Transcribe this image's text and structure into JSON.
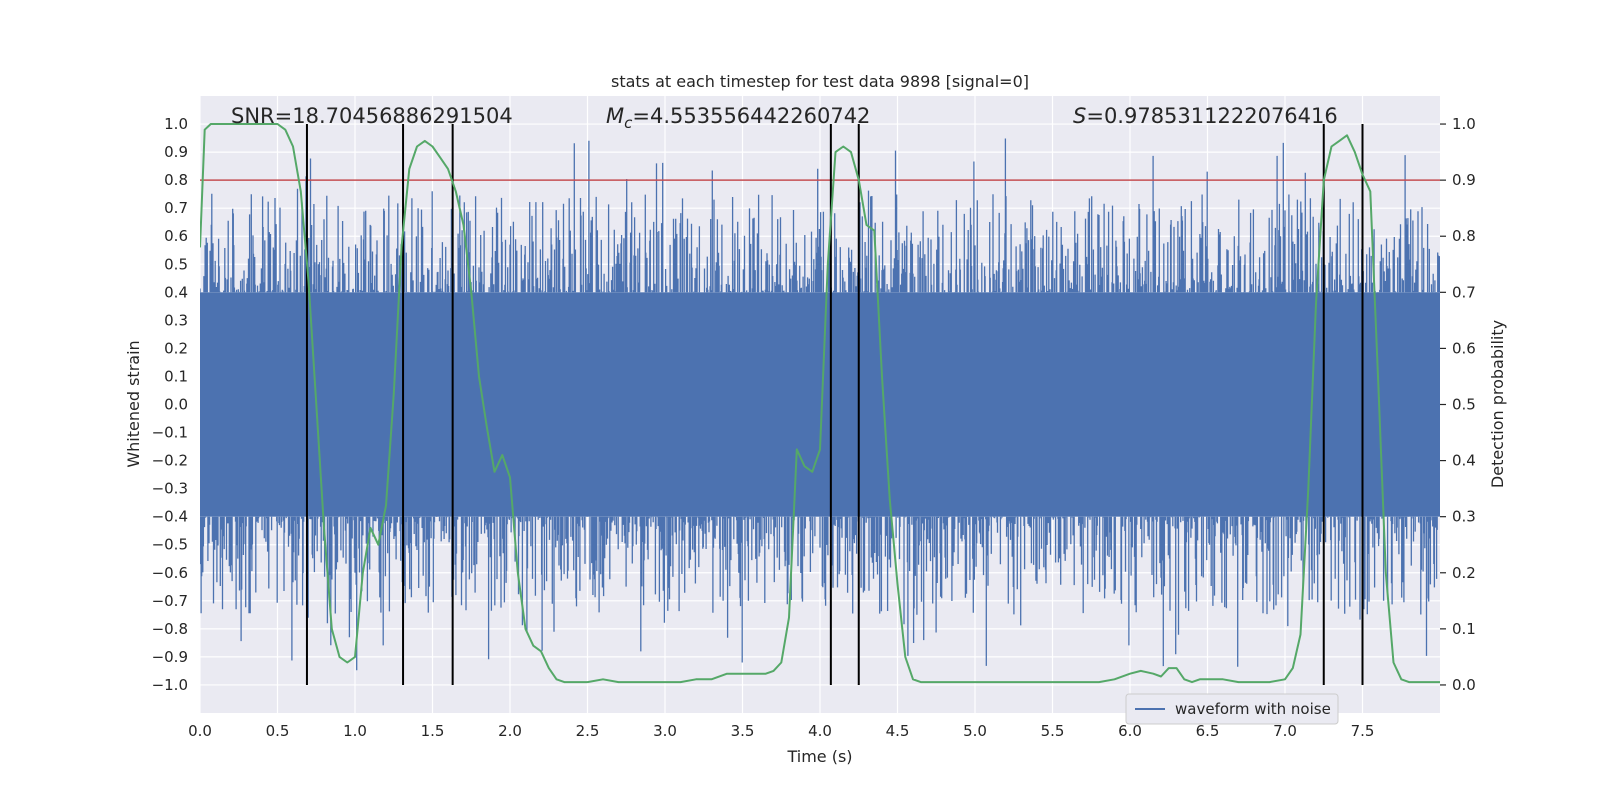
{
  "chart_data": {
    "type": "line",
    "title": "stats at each timestep for test data 9898 [signal=0]",
    "xlabel": "Time (s)",
    "ylabel_left": "Whitened strain",
    "ylabel_right": "Detection probability",
    "xlim": [
      0,
      8
    ],
    "ylim_left": [
      -1.1,
      1.1
    ],
    "ylim_right": [
      -0.05,
      1.05
    ],
    "xticks": [
      "0.0",
      "0.5",
      "1.0",
      "1.5",
      "2.0",
      "2.5",
      "3.0",
      "3.5",
      "4.0",
      "4.5",
      "5.0",
      "5.5",
      "6.0",
      "6.5",
      "7.0",
      "7.5"
    ],
    "xtick_values": [
      0,
      0.5,
      1,
      1.5,
      2,
      2.5,
      3,
      3.5,
      4,
      4.5,
      5,
      5.5,
      6,
      6.5,
      7,
      7.5
    ],
    "yticks_left": [
      "1.0",
      "0.9",
      "0.8",
      "0.7",
      "0.6",
      "0.5",
      "0.4",
      "0.3",
      "0.2",
      "0.1",
      "0.0",
      "−0.1",
      "−0.2",
      "−0.3",
      "−0.4",
      "−0.5",
      "−0.6",
      "−0.7",
      "−0.8",
      "−0.9",
      "−1.0"
    ],
    "ytick_values_left": [
      1.0,
      0.9,
      0.8,
      0.7,
      0.6,
      0.5,
      0.4,
      0.3,
      0.2,
      0.1,
      0.0,
      -0.1,
      -0.2,
      -0.3,
      -0.4,
      -0.5,
      -0.6,
      -0.7,
      -0.8,
      -0.9,
      -1.0
    ],
    "yticks_right": [
      "1.0",
      "0.9",
      "0.8",
      "0.7",
      "0.6",
      "0.5",
      "0.4",
      "0.3",
      "0.2",
      "0.1",
      "0.0"
    ],
    "ytick_values_right": [
      1.0,
      0.9,
      0.8,
      0.7,
      0.6,
      0.5,
      0.4,
      0.3,
      0.2,
      0.1,
      0.0
    ],
    "annotations": {
      "snr": "SNR=18.70456886291504",
      "mc_symbol": "M",
      "mc_sub": "c",
      "mc_value": "=4.553556442260742",
      "s_symbol": "S",
      "s_value": "=0.9785311222076416"
    },
    "legend": [
      "waveform with noise"
    ],
    "threshold": 0.9,
    "vlines": [
      0.69,
      1.31,
      1.63,
      4.07,
      4.25,
      7.25,
      7.5
    ],
    "noise_band": {
      "core_abs": 0.4,
      "duration_s": 8
    },
    "detection_probability": {
      "name": "Detection probability",
      "t": [
        0.0,
        0.03,
        0.07,
        0.12,
        0.2,
        0.3,
        0.4,
        0.5,
        0.55,
        0.6,
        0.65,
        0.7,
        0.75,
        0.8,
        0.85,
        0.9,
        0.95,
        1.0,
        1.05,
        1.1,
        1.15,
        1.2,
        1.25,
        1.3,
        1.35,
        1.4,
        1.45,
        1.5,
        1.55,
        1.6,
        1.65,
        1.7,
        1.75,
        1.8,
        1.85,
        1.9,
        1.95,
        2.0,
        2.05,
        2.1,
        2.15,
        2.2,
        2.25,
        2.3,
        2.35,
        2.4,
        2.5,
        2.6,
        2.7,
        2.8,
        2.9,
        3.0,
        3.1,
        3.2,
        3.3,
        3.4,
        3.45,
        3.5,
        3.55,
        3.6,
        3.65,
        3.7,
        3.75,
        3.8,
        3.85,
        3.9,
        3.95,
        4.0,
        4.05,
        4.1,
        4.15,
        4.2,
        4.25,
        4.3,
        4.35,
        4.4,
        4.45,
        4.5,
        4.55,
        4.6,
        4.65,
        4.7,
        4.75,
        4.8,
        5.0,
        5.2,
        5.4,
        5.6,
        5.8,
        5.9,
        6.0,
        6.07,
        6.15,
        6.2,
        6.25,
        6.3,
        6.35,
        6.4,
        6.45,
        6.5,
        6.6,
        6.7,
        6.8,
        6.9,
        7.0,
        7.05,
        7.1,
        7.15,
        7.2,
        7.25,
        7.3,
        7.35,
        7.4,
        7.45,
        7.5,
        7.55,
        7.6,
        7.65,
        7.7,
        7.75,
        7.8,
        7.9,
        8.0
      ],
      "p": [
        0.78,
        0.99,
        1.0,
        1.0,
        1.0,
        1.0,
        1.0,
        1.0,
        0.99,
        0.96,
        0.88,
        0.72,
        0.5,
        0.28,
        0.1,
        0.05,
        0.04,
        0.05,
        0.2,
        0.28,
        0.25,
        0.32,
        0.52,
        0.78,
        0.92,
        0.96,
        0.97,
        0.96,
        0.94,
        0.92,
        0.88,
        0.82,
        0.7,
        0.55,
        0.46,
        0.38,
        0.41,
        0.37,
        0.2,
        0.1,
        0.07,
        0.06,
        0.03,
        0.01,
        0.005,
        0.005,
        0.005,
        0.01,
        0.005,
        0.005,
        0.005,
        0.005,
        0.005,
        0.01,
        0.01,
        0.02,
        0.02,
        0.02,
        0.02,
        0.02,
        0.02,
        0.025,
        0.04,
        0.12,
        0.42,
        0.39,
        0.38,
        0.42,
        0.75,
        0.95,
        0.96,
        0.95,
        0.9,
        0.82,
        0.81,
        0.55,
        0.33,
        0.18,
        0.05,
        0.01,
        0.005,
        0.005,
        0.005,
        0.005,
        0.005,
        0.005,
        0.005,
        0.005,
        0.005,
        0.01,
        0.02,
        0.025,
        0.02,
        0.015,
        0.03,
        0.03,
        0.01,
        0.005,
        0.01,
        0.01,
        0.01,
        0.005,
        0.005,
        0.005,
        0.01,
        0.03,
        0.09,
        0.35,
        0.68,
        0.9,
        0.96,
        0.97,
        0.98,
        0.95,
        0.91,
        0.88,
        0.55,
        0.2,
        0.04,
        0.01,
        0.005,
        0.005,
        0.005
      ]
    }
  }
}
